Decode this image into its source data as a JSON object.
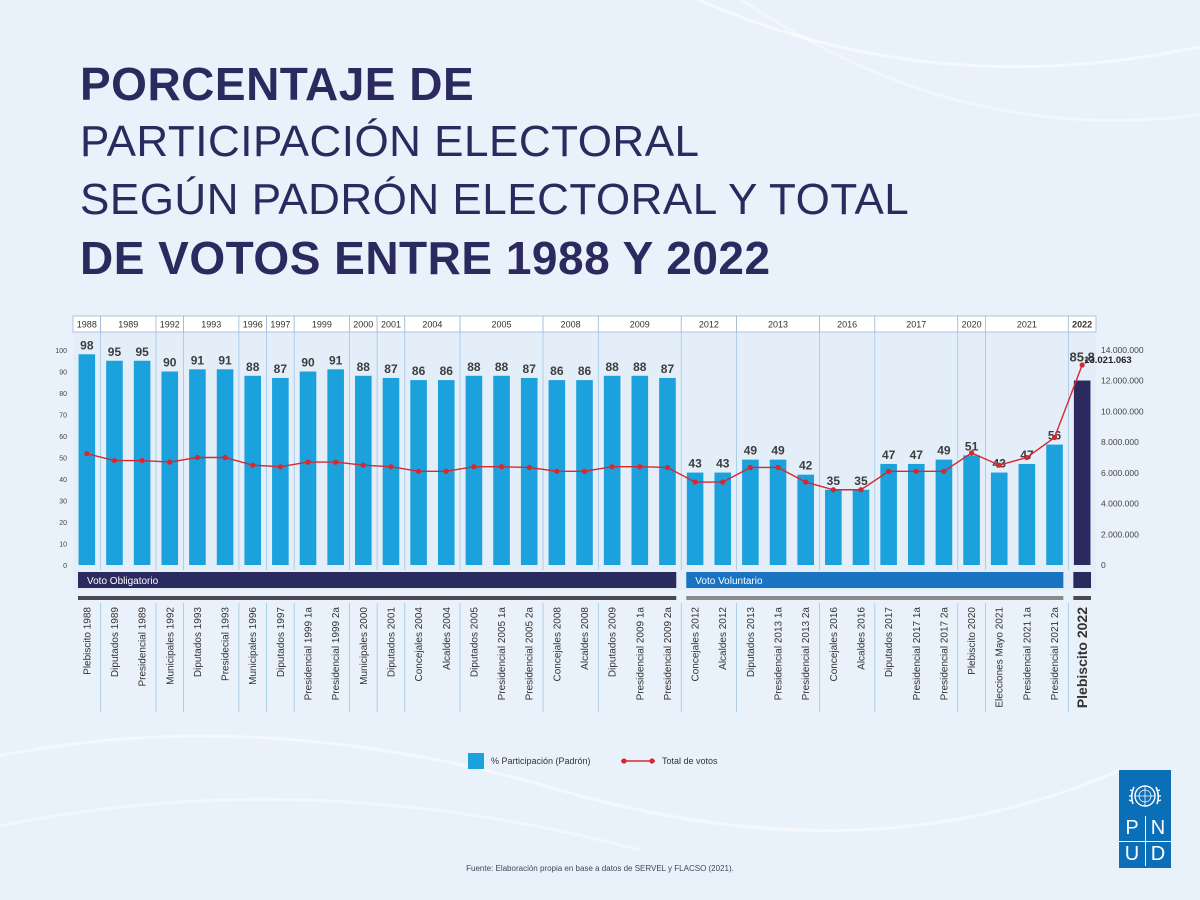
{
  "title": {
    "line1": "PORCENTAJE DE",
    "line2": "PARTICIPACIÓN ELECTORAL",
    "line3": "SEGÚN PADRÓN ELECTORAL Y TOTAL",
    "line4": "DE VOTOS ENTRE 1988 Y 2022"
  },
  "chart_data": {
    "type": "bar",
    "categories": [
      "Plebiscito 1988",
      "Diputados 1989",
      "Presidencial 1989",
      "Municipales 1992",
      "Diputados 1993",
      "Presidecial 1993",
      "Municipales 1996",
      "Diputados 1997",
      "Presidencial 1999 1a",
      "Presidencial 1999 2a",
      "Municipales 2000",
      "Diputados 2001",
      "Concejales 2004",
      "Alcaldes 2004",
      "Diputados 2005",
      "Presidencial 2005 1a",
      "Presidencial 2005 2a",
      "Concejales 2008",
      "Alcaldes 2008",
      "Diputados 2009",
      "Presidencial 2009 1a",
      "Presidencial 2009 2a",
      "Concejales 2012",
      "Alcaldes 2012",
      "Diputados 2013",
      "Presidencial 2013 1a",
      "Presidencial 2013 2a",
      "Concejales 2016",
      "Alcaldes 2016",
      "Diputados 2017",
      "Presidencial 2017 1a",
      "Presidencial 2017 2a",
      "Plebiscito 2020",
      "Elecciones Mayo 2021",
      "Presidencial 2021 1a",
      "Presidencial 2021 2a",
      "Plebiscito 2022"
    ],
    "series": [
      {
        "name": "% Participación (Padrón)",
        "axis": "left",
        "values": [
          98,
          95,
          95,
          90,
          91,
          91,
          88,
          87,
          90,
          91,
          88,
          87,
          86,
          86,
          88,
          88,
          87,
          86,
          86,
          88,
          88,
          87,
          43,
          43,
          49,
          49,
          42,
          35,
          35,
          47,
          47,
          49,
          51,
          43,
          47,
          56,
          85.8
        ]
      },
      {
        "name": "Total de votos",
        "axis": "right",
        "values": [
          7250000,
          6800000,
          6800000,
          6700000,
          7000000,
          7000000,
          6500000,
          6400000,
          6700000,
          6700000,
          6500000,
          6400000,
          6100000,
          6100000,
          6400000,
          6400000,
          6350000,
          6100000,
          6100000,
          6400000,
          6400000,
          6350000,
          5400000,
          5400000,
          6350000,
          6350000,
          5400000,
          4900000,
          4900000,
          6100000,
          6100000,
          6100000,
          7300000,
          6500000,
          7000000,
          8300000,
          13021063
        ]
      }
    ],
    "data_labels": [
      "98",
      "95",
      "95",
      "90",
      "91",
      "91",
      "88",
      "87",
      "90",
      "91",
      "88",
      "87",
      "86",
      "86",
      "88",
      "88",
      "87",
      "86",
      "86",
      "88",
      "88",
      "87",
      "43",
      "43",
      "49",
      "49",
      "42",
      "35",
      "35",
      "47",
      "47",
      "49",
      "51",
      "43",
      "47",
      "56",
      "85,8"
    ],
    "label_shown": [
      true,
      true,
      true,
      true,
      true,
      true,
      true,
      true,
      true,
      true,
      true,
      true,
      true,
      true,
      true,
      true,
      true,
      true,
      true,
      true,
      true,
      true,
      true,
      true,
      true,
      true,
      true,
      true,
      true,
      true,
      true,
      true,
      true,
      true,
      true,
      true,
      true
    ],
    "highlight_index": 36,
    "highlight_total_label": "13.021.063",
    "left_ticks": [
      "0",
      "10",
      "20",
      "30",
      "40",
      "50",
      "60",
      "70",
      "80",
      "90",
      "100"
    ],
    "left_ylim": [
      0,
      100
    ],
    "right_ticks": [
      "0",
      "2.000.000",
      "4.000.000",
      "6.000.000",
      "8.000.000",
      "10.000.000",
      "12.000.000",
      "14.000.000"
    ],
    "right_ylim": [
      0,
      14000000
    ],
    "year_groups": [
      {
        "label": "1988",
        "span": 1
      },
      {
        "label": "1989",
        "span": 2
      },
      {
        "label": "1992",
        "span": 1
      },
      {
        "label": "1993",
        "span": 2
      },
      {
        "label": "1996",
        "span": 1
      },
      {
        "label": "1997",
        "span": 1
      },
      {
        "label": "1999",
        "span": 2
      },
      {
        "label": "2000",
        "span": 1
      },
      {
        "label": "2001",
        "span": 1
      },
      {
        "label": "2004",
        "span": 2
      },
      {
        "label": "2005",
        "span": 3
      },
      {
        "label": "2008",
        "span": 2
      },
      {
        "label": "2009",
        "span": 3
      },
      {
        "label": "2012",
        "span": 2
      },
      {
        "label": "2013",
        "span": 3
      },
      {
        "label": "2016",
        "span": 2
      },
      {
        "label": "2017",
        "span": 3
      },
      {
        "label": "2020",
        "span": 1
      },
      {
        "label": "2021",
        "span": 3
      },
      {
        "label": "2022",
        "span": 1
      }
    ],
    "regimes": [
      {
        "label": "Voto Obligatorio",
        "from": 0,
        "to": 21,
        "color": "#2b2a5e"
      },
      {
        "label": "Voto Voluntario",
        "from": 22,
        "to": 35,
        "color": "#1a73c1"
      },
      {
        "label": "",
        "from": 36,
        "to": 36,
        "color": "#2b2a5e"
      }
    ],
    "legend": {
      "bar": "% Participación (Padrón)",
      "line": "Total de votos",
      "position": "bottom-center"
    },
    "colors": {
      "bar": "#1ba1db",
      "bar_highlight": "#2b2a5e",
      "line": "#d7282f",
      "text": "#3d3d3d"
    }
  },
  "source": "Fuente: Elaboración propia en base a datos de SERVEL y FLACSO (2021).",
  "logo": {
    "letters": [
      "P",
      "N",
      "U",
      "D"
    ]
  }
}
